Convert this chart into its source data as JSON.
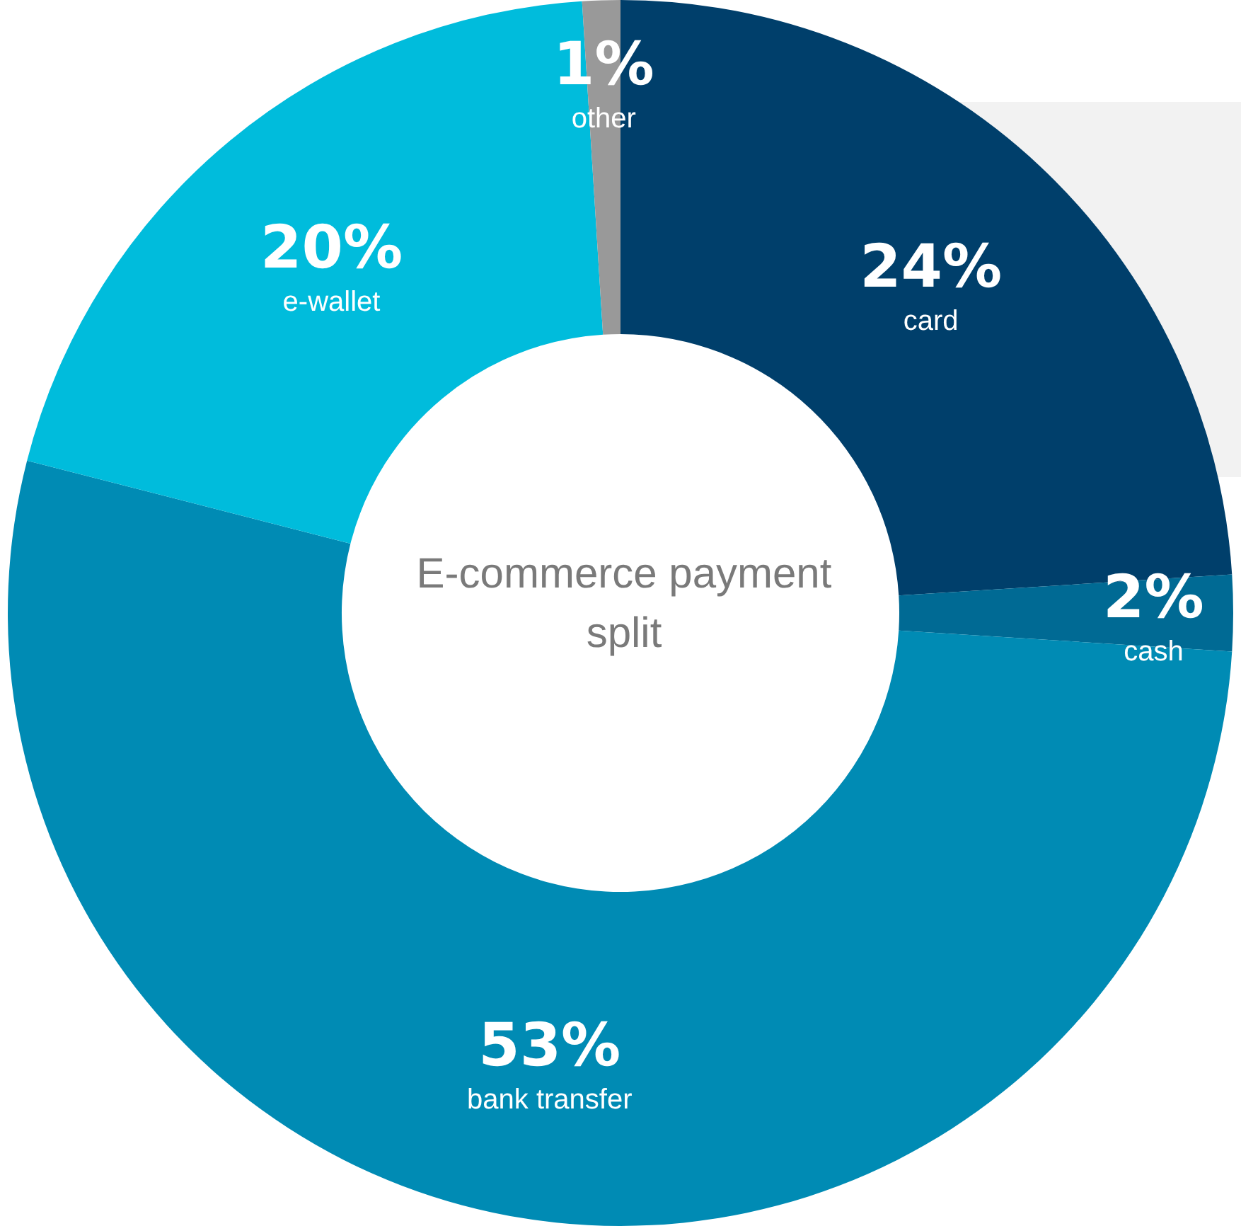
{
  "chart_data": {
    "type": "donut",
    "title": "E-commerce payment split",
    "categories": [
      "card",
      "cash",
      "bank transfer",
      "e-wallet",
      "other"
    ],
    "values": [
      24,
      2,
      53,
      20,
      1
    ],
    "colors": [
      "#003f6b",
      "#006a94",
      "#008bb4",
      "#00bcdc",
      "#999999"
    ],
    "value_labels": [
      "24%",
      "2%",
      "53%",
      "20%",
      "1%"
    ],
    "legend": false
  }
}
